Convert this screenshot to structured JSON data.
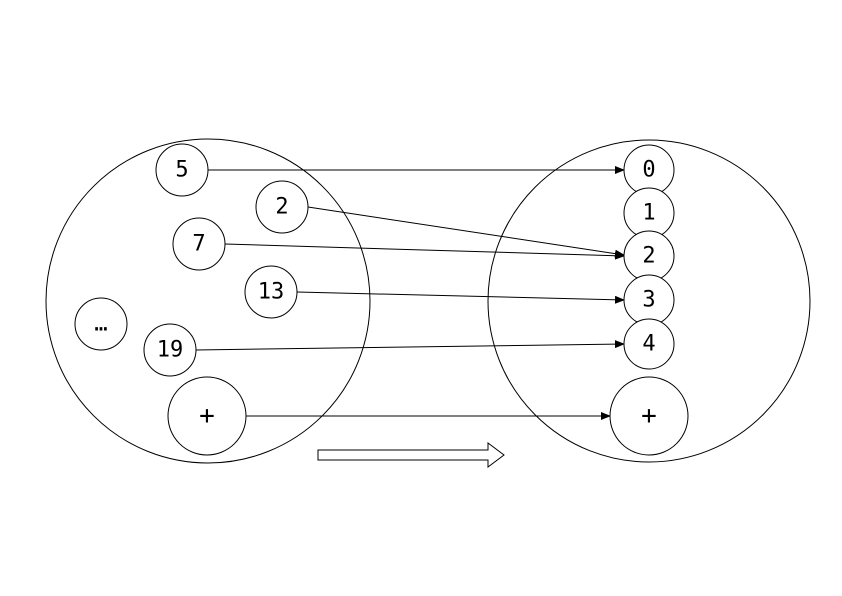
{
  "diagram": {
    "left_set": {
      "elements": [
        {
          "id": "l5",
          "label": "5"
        },
        {
          "id": "l2",
          "label": "2"
        },
        {
          "id": "l7",
          "label": "7"
        },
        {
          "id": "l13",
          "label": "13"
        },
        {
          "id": "lellipsis",
          "label": "…"
        },
        {
          "id": "l19",
          "label": "19"
        },
        {
          "id": "lplus",
          "label": "+"
        }
      ]
    },
    "right_set": {
      "elements": [
        {
          "id": "r0",
          "label": "0"
        },
        {
          "id": "r1",
          "label": "1"
        },
        {
          "id": "r2",
          "label": "2"
        },
        {
          "id": "r3",
          "label": "3"
        },
        {
          "id": "r4",
          "label": "4"
        },
        {
          "id": "rplus",
          "label": "+"
        }
      ]
    },
    "mappings": [
      {
        "from": "5",
        "to": "0"
      },
      {
        "from": "2",
        "to": "2"
      },
      {
        "from": "7",
        "to": "2"
      },
      {
        "from": "13",
        "to": "3"
      },
      {
        "from": "19",
        "to": "4"
      },
      {
        "from": "+",
        "to": "+"
      }
    ],
    "colors": {
      "stroke": "#000000",
      "fill": "#ffffff"
    }
  }
}
